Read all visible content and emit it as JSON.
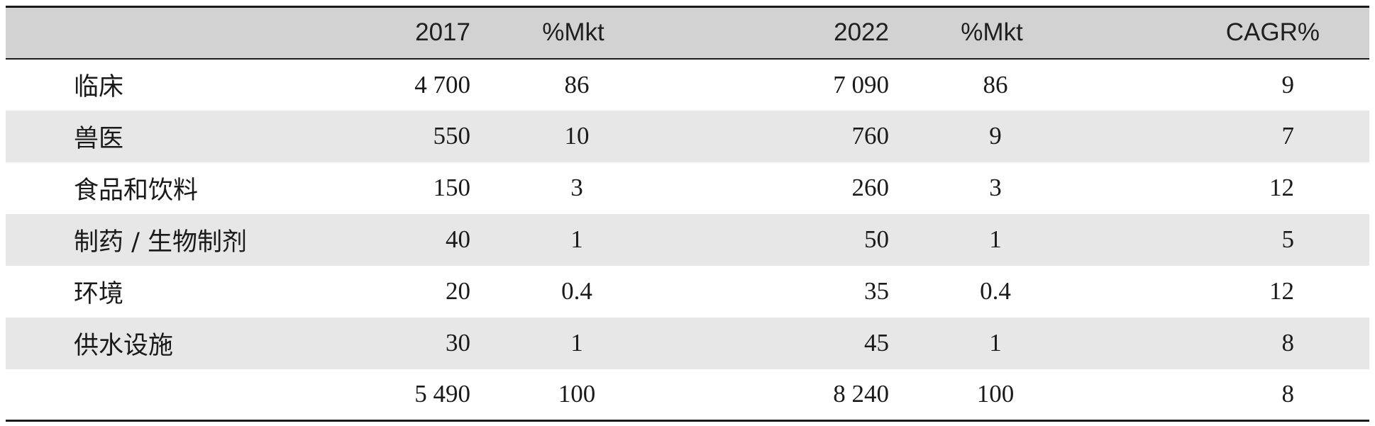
{
  "table": {
    "headers": [
      "",
      "2017",
      "%Mkt",
      "2022",
      "%Mkt",
      "CAGR%"
    ],
    "rows": [
      {
        "label": "临床",
        "v2017": "4 700",
        "mkt2017": "86",
        "v2022": "7 090",
        "mkt2022": "86",
        "cagr": "9"
      },
      {
        "label": "兽医",
        "v2017": "550",
        "mkt2017": "10",
        "v2022": "760",
        "mkt2022": "9",
        "cagr": "7"
      },
      {
        "label": "食品和饮料",
        "v2017": "150",
        "mkt2017": "3",
        "v2022": "260",
        "mkt2022": "3",
        "cagr": "12"
      },
      {
        "label": "制药 / 生物制剂",
        "v2017": "40",
        "mkt2017": "1",
        "v2022": "50",
        "mkt2022": "1",
        "cagr": "5"
      },
      {
        "label": "环境",
        "v2017": "20",
        "mkt2017": "0.4",
        "v2022": "35",
        "mkt2022": "0.4",
        "cagr": "12"
      },
      {
        "label": "供水设施",
        "v2017": "30",
        "mkt2017": "1",
        "v2022": "45",
        "mkt2022": "1",
        "cagr": "8"
      },
      {
        "label": "",
        "v2017": "5 490",
        "mkt2017": "100",
        "v2022": "8 240",
        "mkt2022": "100",
        "cagr": "8"
      }
    ]
  },
  "colors": {
    "header_bg": "#d2d2d2",
    "shaded_row_bg": "#e7e7e7",
    "rule": "#1a1a1a"
  }
}
